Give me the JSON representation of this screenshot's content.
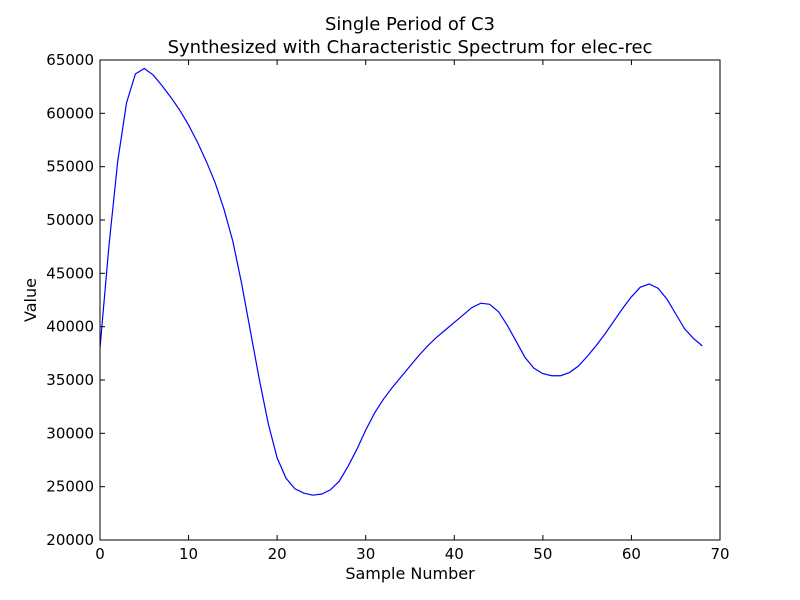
{
  "chart_data": {
    "type": "line",
    "title": [
      "Single Period of C3",
      "Synthesized with Characteristic Spectrum for elec-rec"
    ],
    "xlabel": "Sample Number",
    "ylabel": "Value",
    "x": [
      0,
      1,
      2,
      3,
      4,
      5,
      6,
      7,
      8,
      9,
      10,
      11,
      12,
      13,
      14,
      15,
      16,
      17,
      18,
      19,
      20,
      21,
      22,
      23,
      24,
      25,
      26,
      27,
      28,
      29,
      30,
      31,
      32,
      33,
      34,
      35,
      36,
      37,
      38,
      39,
      40,
      41,
      42,
      43,
      44,
      45,
      46,
      47,
      48,
      49,
      50,
      51,
      52,
      53,
      54,
      55,
      56,
      57,
      58,
      59,
      60,
      61,
      62,
      63,
      64,
      65,
      66,
      67,
      68
    ],
    "series": [
      {
        "color": "#0000ff",
        "values": [
          38000,
          47500,
          55500,
          61000,
          63700,
          64200,
          63600,
          62600,
          61500,
          60300,
          58900,
          57300,
          55500,
          53500,
          51000,
          48000,
          44000,
          39500,
          35000,
          30900,
          27700,
          25800,
          24800,
          24400,
          24200,
          24300,
          24700,
          25500,
          26900,
          28500,
          30300,
          31900,
          33200,
          34300,
          35300,
          36300,
          37300,
          38200,
          39000,
          39700,
          40400,
          41100,
          41800,
          42200,
          42100,
          41400,
          40100,
          38600,
          37100,
          36100,
          35600,
          35400,
          35400,
          35700,
          36300,
          37200,
          38200,
          39300,
          40500,
          41700,
          42800,
          43700,
          44000,
          43600,
          42600,
          41200,
          39800,
          38900,
          38200
        ]
      }
    ],
    "xlim": [
      0,
      70
    ],
    "xticks": [
      0,
      10,
      20,
      30,
      40,
      50,
      60,
      70
    ],
    "ylim": [
      20000,
      65000
    ],
    "yticks": [
      20000,
      25000,
      30000,
      35000,
      40000,
      45000,
      50000,
      55000,
      60000,
      65000
    ]
  }
}
